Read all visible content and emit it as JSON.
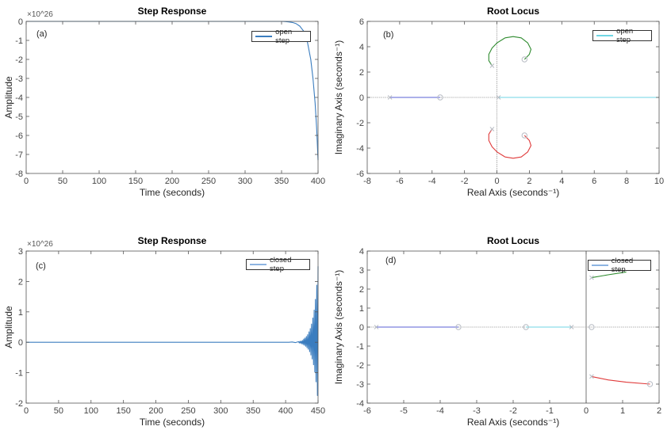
{
  "colors": {
    "step": "#3b7dbf",
    "blue": "#5a62d6",
    "cyan": "#6fd6e4",
    "green": "#2e8b2e",
    "red": "#e03a3a",
    "marker": "#b8bcc4",
    "zero_line": "#9a9a9a"
  },
  "chart_data": [
    {
      "type": "line",
      "panel": "(a)",
      "title": "Step Response",
      "xlabel": "Time (seconds)",
      "ylabel": "Amplitude",
      "exponent": "×10^26",
      "xlim": [
        0,
        400
      ],
      "ylim": [
        -8,
        0
      ],
      "xticks": [
        0,
        50,
        100,
        150,
        200,
        250,
        300,
        350,
        400
      ],
      "yticks": [
        -8,
        -7,
        -6,
        -5,
        -4,
        -3,
        -2,
        -1,
        0
      ],
      "legend": {
        "label": "open step",
        "position": "top-right"
      },
      "series": [
        {
          "name": "open step",
          "color": "step",
          "x": [
            0,
            350,
            355,
            360,
            365,
            370,
            375,
            380,
            385,
            390,
            393,
            396,
            398,
            400
          ],
          "y": [
            0,
            0,
            -0.01,
            -0.03,
            -0.06,
            -0.12,
            -0.25,
            -0.5,
            -1.0,
            -2.0,
            -3.0,
            -4.3,
            -5.6,
            -7.3
          ]
        }
      ]
    },
    {
      "type": "line",
      "panel": "(b)",
      "title": "Root Locus",
      "xlabel": "Real Axis (seconds⁻¹)",
      "ylabel": "Imaginary Axis (seconds⁻¹)",
      "xlim": [
        -8,
        10
      ],
      "ylim": [
        -6,
        6
      ],
      "xticks": [
        -8,
        -6,
        -4,
        -2,
        0,
        2,
        4,
        6,
        8,
        10
      ],
      "yticks": [
        -6,
        -4,
        -2,
        0,
        2,
        4,
        6
      ],
      "legend": {
        "label": "open step",
        "position": "top-right",
        "color": "cyan"
      },
      "series": [
        {
          "color": "blue",
          "x": [
            -6.6,
            -3.5
          ],
          "y": [
            0,
            0
          ]
        },
        {
          "color": "cyan",
          "x": [
            0.1,
            10
          ],
          "y": [
            0,
            0
          ]
        },
        {
          "color": "green",
          "x": [
            -0.3,
            -0.5,
            -0.5,
            -0.3,
            0,
            0.5,
            1,
            1.5,
            1.9,
            2.1,
            2.0,
            1.7
          ],
          "y": [
            2.5,
            2.9,
            3.4,
            3.9,
            4.3,
            4.7,
            4.8,
            4.7,
            4.3,
            3.8,
            3.4,
            3.0
          ]
        },
        {
          "color": "red",
          "x": [
            -0.3,
            -0.5,
            -0.5,
            -0.3,
            0,
            0.5,
            1,
            1.5,
            1.9,
            2.1,
            2.0,
            1.7
          ],
          "y": [
            -2.5,
            -2.9,
            -3.4,
            -3.9,
            -4.3,
            -4.7,
            -4.8,
            -4.7,
            -4.3,
            -3.8,
            -3.4,
            -3.0
          ]
        }
      ],
      "poles": [
        [
          -6.6,
          0
        ],
        [
          -0.3,
          2.5
        ],
        [
          -0.3,
          -2.5
        ],
        [
          0.1,
          0
        ]
      ],
      "zeros": [
        [
          -3.5,
          0
        ],
        [
          1.7,
          3
        ],
        [
          1.7,
          -3
        ]
      ]
    },
    {
      "type": "line",
      "panel": "(c)",
      "title": "Step Response",
      "xlabel": "Time (seconds)",
      "ylabel": "Amplitude",
      "exponent": "×10^26",
      "xlim": [
        0,
        450
      ],
      "ylim": [
        -2,
        3
      ],
      "xticks": [
        0,
        50,
        100,
        150,
        200,
        250,
        300,
        350,
        400,
        450
      ],
      "yticks": [
        -2,
        -1,
        0,
        1,
        2,
        3
      ],
      "legend": {
        "label": "closed step",
        "position": "top-right"
      },
      "series": [
        {
          "name": "closed step",
          "color": "step",
          "x": [
            0,
            405,
            410,
            415,
            420,
            421,
            422,
            423,
            424,
            425,
            426,
            427,
            428,
            429,
            430,
            431,
            432,
            433,
            434,
            435,
            436,
            437,
            438,
            439,
            440,
            441,
            442,
            443,
            444,
            445,
            446,
            447,
            448,
            449,
            450
          ],
          "y": [
            0,
            0,
            0.01,
            -0.01,
            0.02,
            -0.02,
            0.03,
            -0.03,
            0.04,
            -0.05,
            0.06,
            -0.07,
            0.11,
            -0.1,
            0.14,
            -0.13,
            0.19,
            -0.18,
            0.25,
            -0.23,
            0.34,
            -0.31,
            0.45,
            -0.42,
            0.6,
            -0.55,
            0.8,
            -0.74,
            1.06,
            -0.98,
            1.41,
            -1.3,
            1.88,
            -1.75,
            2.5
          ]
        }
      ]
    },
    {
      "type": "line",
      "panel": "(d)",
      "title": "Root Locus",
      "xlabel": "Real Axis (seconds⁻¹)",
      "ylabel": "Imaginary Axis (seconds⁻¹)",
      "xlim": [
        -6,
        2
      ],
      "ylim": [
        -4,
        4
      ],
      "xticks": [
        -6,
        -5,
        -4,
        -3,
        -2,
        -1,
        0,
        1,
        2
      ],
      "yticks": [
        -4,
        -3,
        -2,
        -1,
        0,
        1,
        2,
        3,
        4
      ],
      "legend": {
        "label": "closed step",
        "position": "top-right",
        "color": "#8db4e2"
      },
      "series": [
        {
          "color": "blue",
          "x": [
            -5.75,
            -3.5
          ],
          "y": [
            0,
            0
          ]
        },
        {
          "color": "cyan",
          "x": [
            -1.65,
            -0.4
          ],
          "y": [
            0,
            0
          ]
        },
        {
          "color": "green",
          "x": [
            0.15,
            0.6,
            1.1
          ],
          "y": [
            2.6,
            2.75,
            2.9
          ]
        },
        {
          "color": "red",
          "x": [
            0.15,
            0.6,
            1.1,
            1.75
          ],
          "y": [
            -2.6,
            -2.78,
            -2.9,
            -3.0
          ]
        }
      ],
      "poles": [
        [
          -5.75,
          0
        ],
        [
          -0.4,
          0
        ],
        [
          0.15,
          2.6
        ],
        [
          0.15,
          -2.6
        ]
      ],
      "zeros": [
        [
          -3.5,
          0
        ],
        [
          -1.65,
          0
        ],
        [
          0.15,
          0
        ],
        [
          1.75,
          -3
        ]
      ]
    }
  ]
}
